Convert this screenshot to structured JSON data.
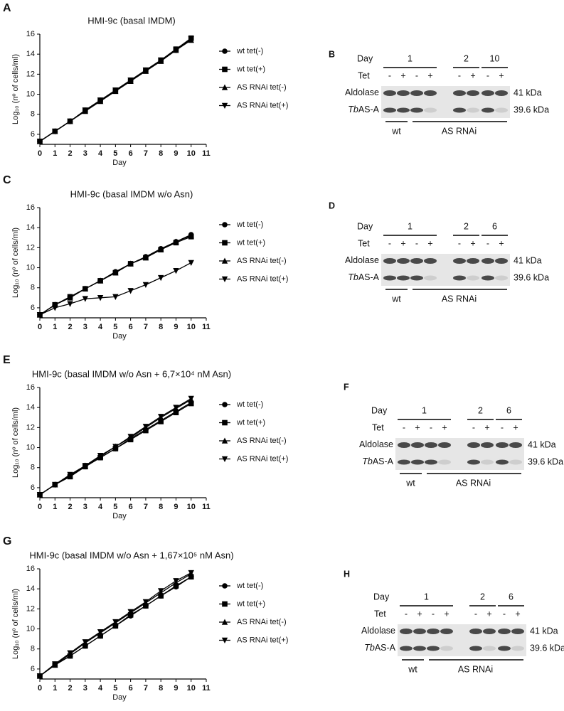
{
  "chart_data": [
    {
      "type": "line",
      "panel": "A",
      "title": "HMI-9c (basal IMDM)",
      "xlabel": "Day",
      "ylabel": "Log₁₀ (nº of cells/ml)",
      "x": [
        0,
        1,
        2,
        3,
        4,
        5,
        6,
        7,
        8,
        9,
        10
      ],
      "xlim": [
        0,
        11
      ],
      "xticks": [
        0,
        1,
        2,
        3,
        4,
        5,
        6,
        7,
        8,
        9,
        10,
        11
      ],
      "ylim": [
        5,
        16
      ],
      "yticks": [
        6,
        8,
        10,
        12,
        14,
        16
      ],
      "series": [
        {
          "name": "wt tet(-)",
          "color": "#000000",
          "marker": "circle",
          "values": [
            5.3,
            6.3,
            7.3,
            8.4,
            9.4,
            10.4,
            11.4,
            12.4,
            13.4,
            14.5,
            15.5
          ]
        },
        {
          "name": "wt tet(+)",
          "color": "#000000",
          "marker": "square",
          "values": [
            5.3,
            6.3,
            7.3,
            8.4,
            9.4,
            10.4,
            11.4,
            12.4,
            13.4,
            14.5,
            15.6
          ]
        },
        {
          "name": "AS RNAi tet(-)",
          "color": "#000000",
          "marker": "triangle-up",
          "values": [
            5.3,
            6.3,
            7.3,
            8.3,
            9.3,
            10.3,
            11.3,
            12.3,
            13.3,
            14.4,
            15.4
          ]
        },
        {
          "name": "AS RNAi tet(+)",
          "color": "#000000",
          "marker": "triangle-down",
          "values": [
            5.3,
            6.3,
            7.3,
            8.4,
            9.4,
            10.4,
            11.4,
            12.4,
            13.4,
            14.4,
            15.5
          ]
        }
      ]
    },
    {
      "type": "line",
      "panel": "C",
      "title": "HMI-9c (basal IMDM w/o Asn)",
      "xlabel": "Day",
      "ylabel": "Log₁₀ (nº of cells/ml)",
      "x": [
        0,
        1,
        2,
        3,
        4,
        5,
        6,
        7,
        8,
        9,
        10
      ],
      "xlim": [
        0,
        11
      ],
      "xticks": [
        0,
        1,
        2,
        3,
        4,
        5,
        6,
        7,
        8,
        9,
        10,
        11
      ],
      "ylim": [
        5,
        16
      ],
      "yticks": [
        6,
        8,
        10,
        12,
        14,
        16
      ],
      "series": [
        {
          "name": "wt tet(-)",
          "color": "#000000",
          "marker": "circle",
          "values": [
            5.3,
            6.3,
            7.1,
            7.9,
            8.7,
            9.6,
            10.4,
            11.1,
            11.9,
            12.6,
            13.3
          ]
        },
        {
          "name": "wt tet(+)",
          "color": "#000000",
          "marker": "square",
          "values": [
            5.3,
            6.3,
            7.1,
            7.9,
            8.7,
            9.5,
            10.4,
            11.0,
            11.8,
            12.5,
            13.1
          ]
        },
        {
          "name": "AS RNAi tet(-)",
          "color": "#000000",
          "marker": "triangle-up",
          "values": [
            5.3,
            6.3,
            7.0,
            7.9,
            8.7,
            9.5,
            10.4,
            11.0,
            11.8,
            12.6,
            13.2
          ]
        },
        {
          "name": "AS RNAi tet(+)",
          "color": "#000000",
          "marker": "triangle-down",
          "values": [
            5.3,
            6.0,
            6.4,
            6.9,
            7.0,
            7.1,
            7.7,
            8.3,
            9.0,
            9.7,
            10.5
          ]
        }
      ]
    },
    {
      "type": "line",
      "panel": "E",
      "title": "HMI-9c (basal IMDM w/o Asn + 6,7×10⁴ nM Asn)",
      "xlabel": "Day",
      "ylabel": "Log₁₀ (nº of cells/ml)",
      "x": [
        0,
        1,
        2,
        3,
        4,
        5,
        6,
        7,
        8,
        9,
        10
      ],
      "xlim": [
        0,
        11
      ],
      "xticks": [
        0,
        1,
        2,
        3,
        4,
        5,
        6,
        7,
        8,
        9,
        10,
        11
      ],
      "ylim": [
        5,
        16
      ],
      "yticks": [
        6,
        8,
        10,
        12,
        14,
        16
      ],
      "series": [
        {
          "name": "wt tet(-)",
          "color": "#000000",
          "marker": "circle",
          "values": [
            5.3,
            6.3,
            7.2,
            8.1,
            9.0,
            9.9,
            10.9,
            11.8,
            12.7,
            13.6,
            14.5
          ]
        },
        {
          "name": "wt tet(+)",
          "color": "#000000",
          "marker": "square",
          "values": [
            5.3,
            6.3,
            7.1,
            8.1,
            9.0,
            9.9,
            10.8,
            11.7,
            12.6,
            13.5,
            14.4
          ]
        },
        {
          "name": "AS RNAi tet(-)",
          "color": "#000000",
          "marker": "triangle-up",
          "values": [
            5.3,
            6.3,
            7.2,
            8.2,
            9.1,
            10.1,
            11.0,
            12.0,
            13.0,
            13.9,
            14.8
          ]
        },
        {
          "name": "AS RNAi tet(+)",
          "color": "#000000",
          "marker": "triangle-down",
          "values": [
            5.3,
            6.3,
            7.3,
            8.2,
            9.2,
            10.1,
            11.1,
            12.1,
            13.1,
            14.0,
            14.9
          ]
        }
      ]
    },
    {
      "type": "line",
      "panel": "G",
      "title": "HMI-9c (basal IMDM w/o Asn + 1,67×10⁵ nM Asn)",
      "xlabel": "Day",
      "ylabel": "Log₁₀ (nº of cells/ml)",
      "x": [
        0,
        1,
        2,
        3,
        4,
        5,
        6,
        7,
        8,
        9,
        10
      ],
      "xlim": [
        0,
        11
      ],
      "xticks": [
        0,
        1,
        2,
        3,
        4,
        5,
        6,
        7,
        8,
        9,
        10,
        11
      ],
      "ylim": [
        5,
        16
      ],
      "yticks": [
        6,
        8,
        10,
        12,
        14,
        16
      ],
      "series": [
        {
          "name": "wt tet(-)",
          "color": "#000000",
          "marker": "circle",
          "values": [
            5.3,
            6.4,
            7.3,
            8.3,
            9.3,
            10.3,
            11.3,
            12.3,
            13.3,
            14.2,
            15.2
          ]
        },
        {
          "name": "wt tet(+)",
          "color": "#000000",
          "marker": "square",
          "values": [
            5.3,
            6.4,
            7.3,
            8.3,
            9.3,
            10.3,
            11.4,
            12.3,
            13.3,
            14.3,
            15.2
          ]
        },
        {
          "name": "AS RNAi tet(-)",
          "color": "#000000",
          "marker": "triangle-up",
          "values": [
            5.3,
            6.4,
            7.5,
            8.6,
            9.6,
            10.6,
            11.6,
            12.6,
            13.6,
            14.6,
            15.5
          ]
        },
        {
          "name": "AS RNAi tet(+)",
          "color": "#000000",
          "marker": "triangle-down",
          "values": [
            5.3,
            6.5,
            7.6,
            8.7,
            9.7,
            10.7,
            11.7,
            12.7,
            13.8,
            14.8,
            15.6
          ]
        }
      ]
    }
  ],
  "blots": [
    {
      "panel": "B",
      "day_label": "Day",
      "days": [
        "1",
        "2",
        "10"
      ],
      "tet_label": "Tet",
      "tet": [
        "-",
        "+",
        "-",
        "+",
        "-",
        "+",
        "-",
        "+"
      ],
      "rows": [
        {
          "label": "Aldolase",
          "size": "41 kDa"
        },
        {
          "label_italic": "Tb",
          "label": "AS-A",
          "size": "39.6 kDa"
        }
      ],
      "groups": [
        "wt",
        "AS RNAi"
      ]
    },
    {
      "panel": "D",
      "day_label": "Day",
      "days": [
        "1",
        "2",
        "6"
      ],
      "tet_label": "Tet",
      "tet": [
        "-",
        "+",
        "-",
        "+",
        "-",
        "+",
        "-",
        "+"
      ],
      "rows": [
        {
          "label": "Aldolase",
          "size": "41 kDa"
        },
        {
          "label_italic": "Tb",
          "label": "AS-A",
          "size": "39.6 kDa"
        }
      ],
      "groups": [
        "wt",
        "AS RNAi"
      ]
    },
    {
      "panel": "F",
      "day_label": "Day",
      "days": [
        "1",
        "2",
        "6"
      ],
      "tet_label": "Tet",
      "tet": [
        "-",
        "+",
        "-",
        "+",
        "-",
        "+",
        "-",
        "+"
      ],
      "rows": [
        {
          "label": "Aldolase",
          "size": "41 kDa"
        },
        {
          "label_italic": "Tb",
          "label": "AS-A",
          "size": "39.6 kDa"
        }
      ],
      "groups": [
        "wt",
        "AS RNAi"
      ]
    },
    {
      "panel": "H",
      "day_label": "Day",
      "days": [
        "1",
        "2",
        "6"
      ],
      "tet_label": "Tet",
      "tet": [
        "-",
        "+",
        "-",
        "+",
        "-",
        "+",
        "-",
        "+"
      ],
      "rows": [
        {
          "label": "Aldolase",
          "size": "41 kDa"
        },
        {
          "label_italic": "Tb",
          "label": "AS-A",
          "size": "39.6 kDa"
        }
      ],
      "groups": [
        "wt",
        "AS RNAi"
      ]
    }
  ]
}
